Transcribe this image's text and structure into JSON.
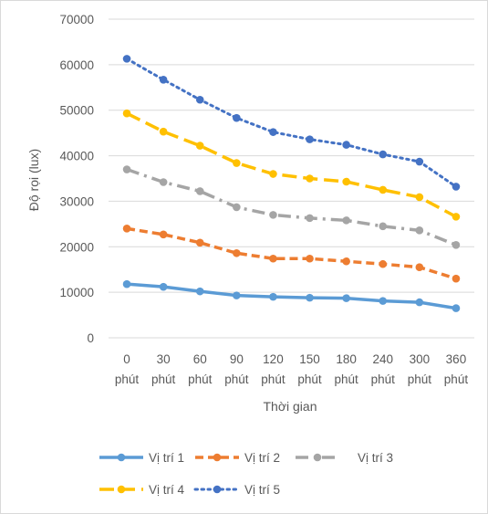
{
  "chart_data": {
    "type": "line",
    "title": "",
    "xlabel": "Thời gian",
    "ylabel": "Độ rọi (lux)",
    "ylim": [
      0,
      70000
    ],
    "yticks": [
      0,
      10000,
      20000,
      30000,
      40000,
      50000,
      60000,
      70000
    ],
    "grid": true,
    "legend_position": "bottom",
    "categories": [
      [
        "0",
        "phút"
      ],
      [
        "30",
        "phút"
      ],
      [
        "60",
        "phút"
      ],
      [
        "90",
        "phút"
      ],
      [
        "120",
        "phút"
      ],
      [
        "150",
        "phút"
      ],
      [
        "180",
        "phút"
      ],
      [
        "240",
        "phút"
      ],
      [
        "300",
        "phút"
      ],
      [
        "360",
        "phút"
      ]
    ],
    "series": [
      {
        "name": "Vị trí 1",
        "color": "#5B9BD5",
        "style": "solid",
        "values": [
          11800,
          11200,
          10200,
          9300,
          9000,
          8800,
          8700,
          8100,
          7800,
          6500
        ]
      },
      {
        "name": "Vị trí 2",
        "color": "#ED7D31",
        "style": "dash",
        "values": [
          24000,
          22700,
          20900,
          18600,
          17400,
          17400,
          16800,
          16200,
          15500,
          13000
        ]
      },
      {
        "name": "Vị trí 3",
        "color": "#A5A5A5",
        "style": "dashdot",
        "values": [
          37000,
          34200,
          32200,
          28700,
          27000,
          26300,
          25800,
          24500,
          23600,
          20400
        ]
      },
      {
        "name": "Vị trí 4",
        "color": "#FFC000",
        "style": "longdash",
        "values": [
          49300,
          45300,
          42200,
          38400,
          36000,
          35000,
          34300,
          32500,
          30900,
          26600
        ]
      },
      {
        "name": "Vị trí 5",
        "color": "#4472C4",
        "style": "dot",
        "values": [
          61300,
          56700,
          52300,
          48300,
          45200,
          43600,
          42400,
          40300,
          38700,
          33200
        ]
      }
    ]
  }
}
